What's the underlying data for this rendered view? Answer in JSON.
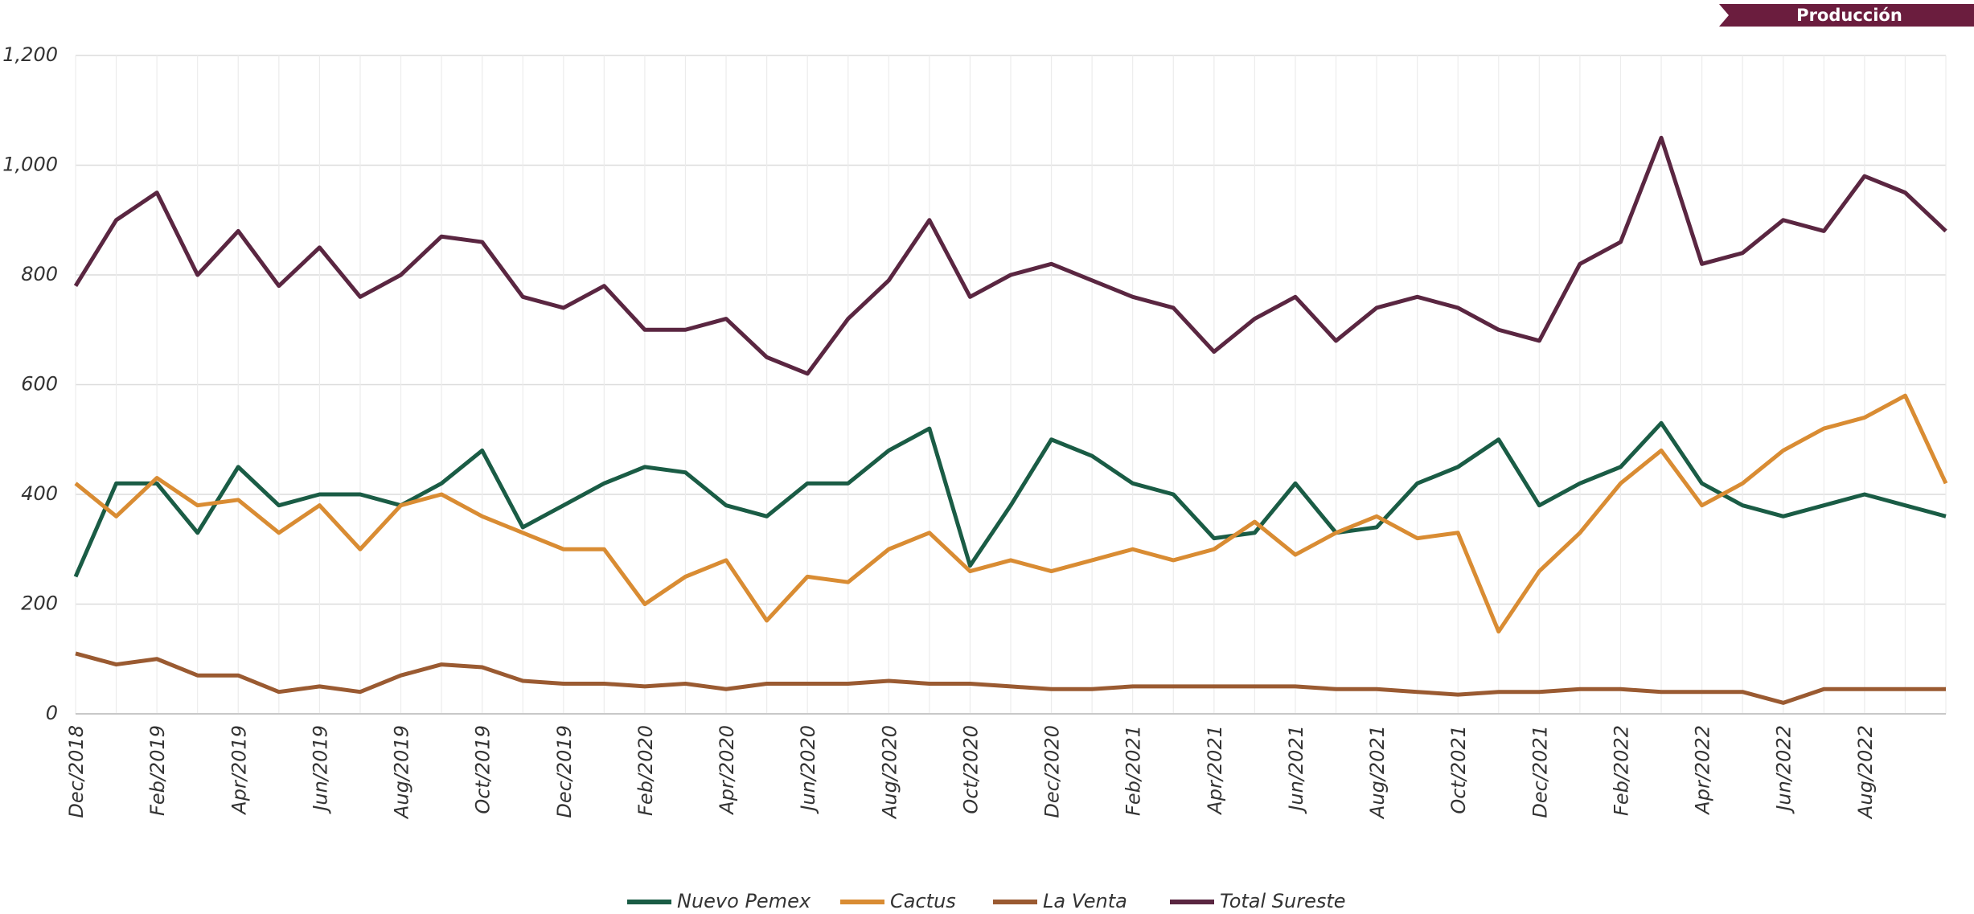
{
  "badge": "Producción",
  "chart_data": {
    "type": "line",
    "categories": [
      "Dec/2018",
      null,
      "Feb/2019",
      null,
      "Apr/2019",
      null,
      "Jun/2019",
      null,
      "Aug/2019",
      null,
      "Oct/2019",
      null,
      "Dec/2019",
      null,
      "Feb/2020",
      null,
      "Apr/2020",
      null,
      "Jun/2020",
      null,
      "Aug/2020",
      null,
      "Oct/2020",
      null,
      "Dec/2020",
      null,
      "Feb/2021",
      null,
      "Apr/2021",
      null,
      "Jun/2021",
      null,
      "Aug/2021",
      null,
      "Oct/2021",
      null,
      "Dec/2021",
      null,
      "Feb/2022",
      null,
      "Apr/2022",
      null,
      "Jun/2022",
      null,
      "Aug/2022",
      null,
      null
    ],
    "series": [
      {
        "name": "Nuevo Pemex",
        "color": "#1a5c45",
        "values": [
          250,
          420,
          420,
          330,
          450,
          380,
          400,
          400,
          380,
          420,
          480,
          340,
          380,
          420,
          450,
          440,
          380,
          360,
          420,
          420,
          480,
          520,
          270,
          380,
          500,
          470,
          420,
          400,
          320,
          330,
          420,
          330,
          340,
          420,
          450,
          500,
          380,
          420,
          450,
          530,
          420,
          380,
          360,
          380,
          400,
          380,
          360
        ]
      },
      {
        "name": "Cactus",
        "color": "#d98c33",
        "values": [
          420,
          360,
          430,
          380,
          390,
          330,
          380,
          300,
          380,
          400,
          360,
          330,
          300,
          300,
          200,
          250,
          280,
          170,
          250,
          240,
          300,
          330,
          260,
          280,
          260,
          280,
          300,
          280,
          300,
          350,
          290,
          330,
          360,
          320,
          330,
          150,
          260,
          330,
          420,
          480,
          380,
          420,
          480,
          520,
          540,
          580,
          420
        ]
      },
      {
        "name": "La Venta",
        "color": "#9a5a31",
        "values": [
          110,
          90,
          100,
          70,
          70,
          40,
          50,
          40,
          70,
          90,
          85,
          60,
          55,
          55,
          50,
          55,
          45,
          55,
          55,
          55,
          60,
          55,
          55,
          50,
          45,
          45,
          50,
          50,
          50,
          50,
          50,
          45,
          45,
          40,
          35,
          40,
          40,
          45,
          45,
          40,
          40,
          40,
          20,
          45,
          45,
          45,
          45
        ]
      },
      {
        "name": "Total Sureste",
        "color": "#5a2641",
        "values": [
          780,
          900,
          950,
          800,
          880,
          780,
          850,
          760,
          800,
          870,
          860,
          760,
          740,
          780,
          700,
          700,
          720,
          650,
          620,
          720,
          790,
          900,
          760,
          800,
          820,
          790,
          760,
          740,
          660,
          720,
          760,
          680,
          740,
          760,
          740,
          700,
          680,
          820,
          860,
          1050,
          820,
          840,
          900,
          880,
          980,
          950,
          880
        ]
      }
    ],
    "ylim": [
      0,
      1200
    ],
    "yticks": [
      0,
      200,
      400,
      600,
      800,
      {
        "value": 1000,
        "label": "1,000"
      },
      {
        "value": 1200,
        "label": "1,200"
      }
    ],
    "grid": true,
    "legend": "bottom"
  }
}
